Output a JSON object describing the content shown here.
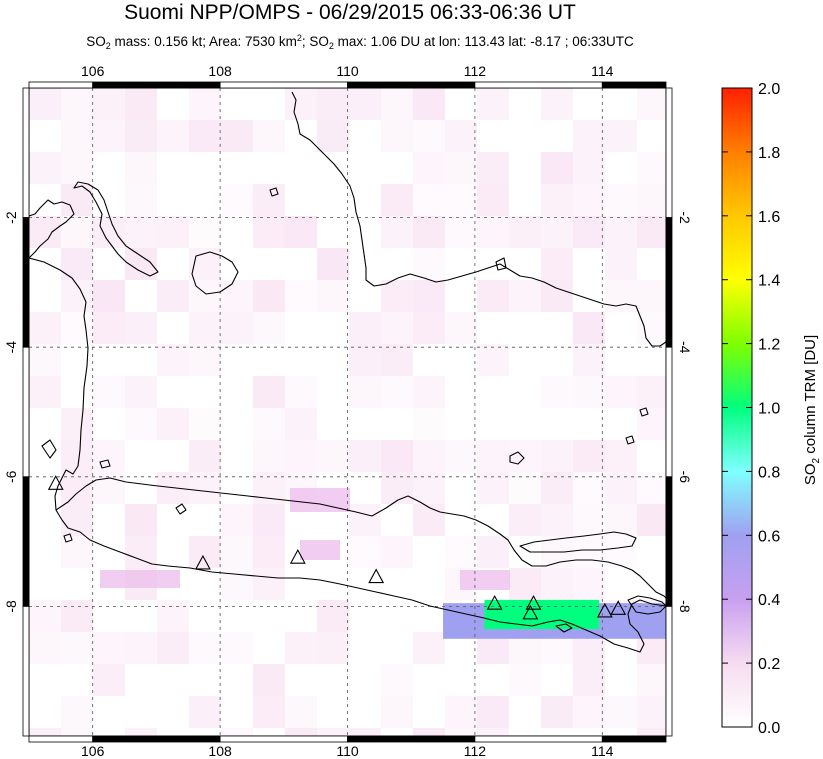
{
  "title": "Suomi NPP/OMPS - 06/29/2015 06:33-06:36 UT",
  "subtitle": {
    "so2_prefix": "SO",
    "so2_sub": "2",
    "mass_text": " mass: 0.156 kt; Area: 7530 km",
    "area_sup": "2",
    "sep_text": "; SO",
    "so2_sub_2": "2",
    "max_text": " max: 1.06 DU at lon: 113.43 lat: -8.17 ; 06:33UTC"
  },
  "map": {
    "lon_range": [
      105.0,
      115.0
    ],
    "lat_range": [
      -10.0,
      0.0
    ],
    "lon_ticks": [
      106,
      108,
      110,
      112,
      114
    ],
    "lon_labels": [
      "106",
      "108",
      "110",
      "112",
      "114"
    ],
    "lat_ticks": [
      -2,
      -4,
      -6,
      -8
    ],
    "lat_labels": [
      "-2",
      "-4",
      "-6",
      "-8"
    ],
    "gridlines": true,
    "volcanoes": [
      {
        "lon": 105.42,
        "lat": -6.1
      },
      {
        "lon": 107.73,
        "lat": -7.33
      },
      {
        "lon": 109.22,
        "lat": -7.24
      },
      {
        "lon": 110.45,
        "lat": -7.54
      },
      {
        "lon": 112.31,
        "lat": -7.95
      },
      {
        "lon": 112.92,
        "lat": -7.95
      },
      {
        "lon": 112.87,
        "lat": -8.1
      },
      {
        "lon": 114.04,
        "lat": -8.07
      },
      {
        "lon": 114.25,
        "lat": -8.03
      }
    ],
    "so2_regions": [
      {
        "description": "moderate SO2 plume",
        "lon": [
          112.15,
          113.95
        ],
        "lat": [
          -7.9,
          -8.35
        ],
        "value_du": 0.95
      },
      {
        "description": "moderate SO2 plume",
        "lon": [
          111.5,
          115.0
        ],
        "lat": [
          -7.95,
          -8.5
        ],
        "value_du": 0.62
      }
    ]
  },
  "colorbar": {
    "label_prefix": "SO",
    "label_sub": "2",
    "label_suffix": " column TRM [DU]",
    "min": 0.0,
    "max": 2.0,
    "tick_labels": [
      "0.0",
      "0.2",
      "0.4",
      "0.6",
      "0.8",
      "1.0",
      "1.2",
      "1.4",
      "1.6",
      "1.8",
      "2.0"
    ],
    "colors": [
      "#ffffff",
      "#f6dcf0",
      "#c8a0f0",
      "#a0a0f0",
      "#7fffff",
      "#00ff7f",
      "#7fff00",
      "#ffff00",
      "#ffc800",
      "#ff7f00",
      "#ff2000"
    ]
  }
}
